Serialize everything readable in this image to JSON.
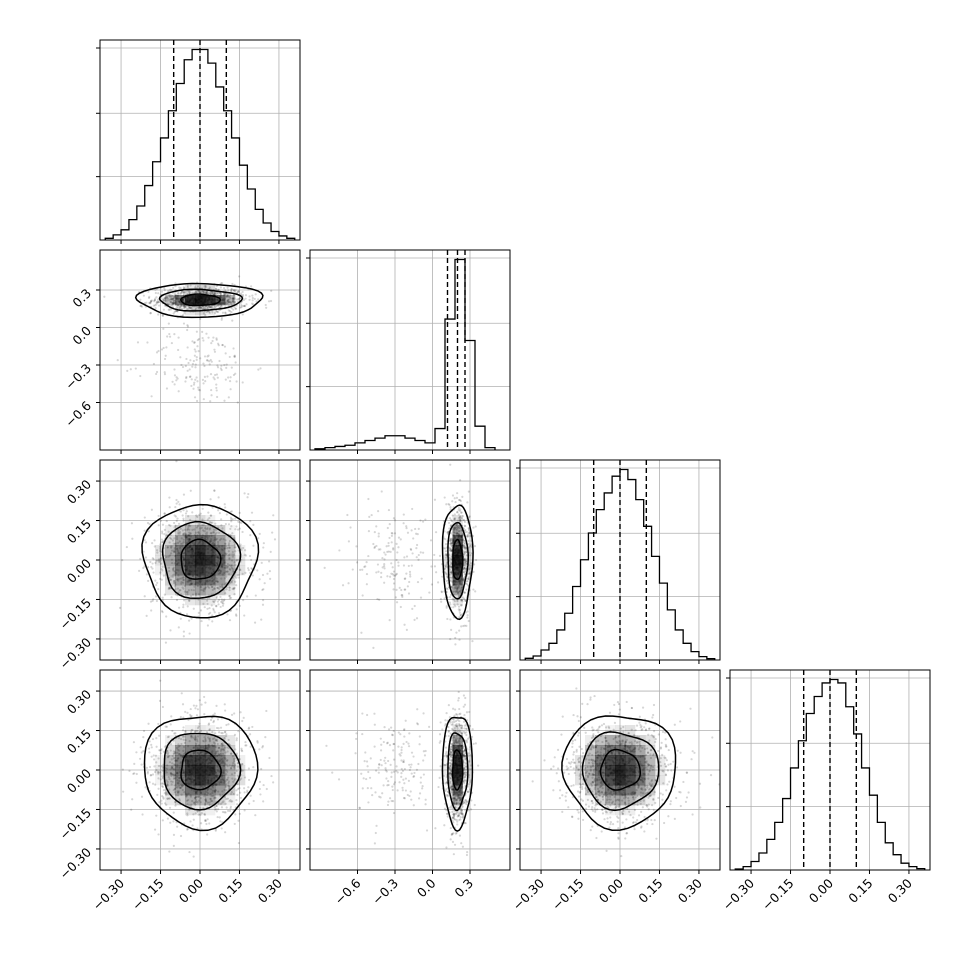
{
  "figure": {
    "type": "corner-plot",
    "n_parameters": 4,
    "colors": {
      "background": "#ffffff",
      "line": "#000000",
      "grid": "#b0b0b0",
      "scatter_points": "#000000",
      "density": "#000000"
    },
    "contour_levels": 3,
    "quantile_lines": "dashed"
  },
  "chart_data": [
    {
      "panel": "hist-param-1",
      "type": "histogram",
      "x_range": [
        -0.38,
        0.38
      ],
      "bin_edges": [
        -0.36,
        -0.33,
        -0.3,
        -0.27,
        -0.24,
        -0.21,
        -0.18,
        -0.15,
        -0.12,
        -0.09,
        -0.06,
        -0.03,
        0.0,
        0.03,
        0.06,
        0.09,
        0.12,
        0.15,
        0.18,
        0.21,
        0.24,
        0.27,
        0.3,
        0.33,
        0.36
      ],
      "counts": [
        0.5,
        1.5,
        3,
        6,
        10,
        16,
        23,
        30,
        38,
        46,
        53,
        56,
        56,
        52,
        45,
        38,
        30,
        22,
        15,
        9,
        5,
        2.5,
        1.2,
        0.5
      ],
      "quantiles": [
        -0.1,
        0.0,
        0.1
      ],
      "xticks": [
        "−0.30",
        "−0.15",
        "0.00",
        "0.15",
        "0.30"
      ],
      "grid": true
    },
    {
      "panel": "hist-param-2",
      "type": "histogram",
      "x_range": [
        -0.98,
        0.62
      ],
      "bin_edges": [
        -0.94,
        -0.86,
        -0.78,
        -0.7,
        -0.62,
        -0.54,
        -0.46,
        -0.38,
        -0.3,
        -0.22,
        -0.14,
        -0.06,
        0.02,
        0.1,
        0.18,
        0.26,
        0.34,
        0.42,
        0.5
      ],
      "counts": [
        0.5,
        1,
        1.5,
        2,
        3,
        4,
        5,
        6,
        6,
        5,
        4,
        3,
        9,
        55,
        80,
        46,
        10,
        1
      ],
      "quantiles": [
        0.12,
        0.2,
        0.26
      ],
      "xticks": [
        "−0.6",
        "−0.3",
        "0.0",
        "0.3"
      ],
      "grid": true
    },
    {
      "panel": "hist-param-3",
      "type": "histogram",
      "x_range": [
        -0.38,
        0.38
      ],
      "bin_edges": [
        -0.36,
        -0.33,
        -0.3,
        -0.27,
        -0.24,
        -0.21,
        -0.18,
        -0.15,
        -0.12,
        -0.09,
        -0.06,
        -0.03,
        0.0,
        0.03,
        0.06,
        0.09,
        0.12,
        0.15,
        0.18,
        0.21,
        0.24,
        0.27,
        0.3,
        0.33,
        0.36
      ],
      "counts": [
        0.5,
        1.2,
        3,
        5,
        9,
        14,
        22,
        30,
        38,
        45,
        50,
        55,
        57,
        54,
        48,
        40,
        31,
        23,
        15,
        9,
        5,
        2.5,
        1,
        0.4
      ],
      "quantiles": [
        -0.1,
        0.0,
        0.1
      ],
      "xticks": [
        "−0.30",
        "−0.15",
        "0.00",
        "0.15",
        "0.30"
      ],
      "grid": true
    },
    {
      "panel": "hist-param-4",
      "type": "histogram",
      "x_range": [
        -0.38,
        0.38
      ],
      "bin_edges": [
        -0.36,
        -0.33,
        -0.3,
        -0.27,
        -0.24,
        -0.21,
        -0.18,
        -0.15,
        -0.12,
        -0.09,
        -0.06,
        -0.03,
        0.0,
        0.03,
        0.06,
        0.09,
        0.12,
        0.15,
        0.18,
        0.21,
        0.24,
        0.27,
        0.3,
        0.33,
        0.36
      ],
      "counts": [
        0.3,
        1,
        2.5,
        5,
        9,
        14,
        21,
        30,
        38,
        46,
        51,
        55,
        56,
        55,
        48,
        40,
        30,
        22,
        14,
        8,
        4.5,
        2,
        1,
        0.4
      ],
      "quantiles": [
        -0.1,
        0.0,
        0.1
      ],
      "xticks": [
        "−0.30",
        "−0.15",
        "0.00",
        "0.15",
        "0.30"
      ],
      "grid": true
    },
    {
      "panel": "scatter-p2-vs-p1",
      "type": "scatter-density",
      "x_range": [
        -0.38,
        0.38
      ],
      "y_range": [
        -0.98,
        0.62
      ],
      "blobs": [
        {
          "cx": 0.0,
          "cy": 0.22,
          "sx": 0.09,
          "sy": 0.055,
          "weight": 0.85
        },
        {
          "cx": 0.0,
          "cy": -0.3,
          "sx": 0.1,
          "sy": 0.16,
          "weight": 0.15
        }
      ],
      "contours": [
        {
          "cx": 0.0,
          "cy": 0.22,
          "rx": 0.235,
          "ry": 0.135
        },
        {
          "cx": 0.0,
          "cy": 0.22,
          "rx": 0.155,
          "ry": 0.085
        },
        {
          "cx": 0.0,
          "cy": 0.22,
          "rx": 0.075,
          "ry": 0.045
        }
      ],
      "yticks": [
        "0.3",
        "0.0",
        "−0.3",
        "−0.6"
      ],
      "grid": true
    },
    {
      "panel": "scatter-p3-vs-p1",
      "type": "scatter-density",
      "x_range": [
        -0.38,
        0.38
      ],
      "y_range": [
        -0.38,
        0.38
      ],
      "blobs": [
        {
          "cx": 0.0,
          "cy": 0.0,
          "sx": 0.1,
          "sy": 0.1,
          "weight": 1.0
        }
      ],
      "contours": [
        {
          "cx": 0.0,
          "cy": 0.0,
          "rx": 0.215,
          "ry": 0.215
        },
        {
          "cx": 0.0,
          "cy": 0.0,
          "rx": 0.145,
          "ry": 0.145
        },
        {
          "cx": 0.0,
          "cy": 0.0,
          "rx": 0.075,
          "ry": 0.075
        }
      ],
      "yticks": [
        "0.30",
        "0.15",
        "0.00",
        "−0.15",
        "−0.30"
      ],
      "grid": true
    },
    {
      "panel": "scatter-p3-vs-p2",
      "type": "scatter-density",
      "x_range": [
        -0.98,
        0.62
      ],
      "y_range": [
        -0.38,
        0.38
      ],
      "blobs": [
        {
          "cx": 0.2,
          "cy": 0.0,
          "sx": 0.05,
          "sy": 0.1,
          "weight": 0.85
        },
        {
          "cx": -0.3,
          "cy": 0.0,
          "sx": 0.16,
          "sy": 0.1,
          "weight": 0.15
        }
      ],
      "contours": [
        {
          "cx": 0.2,
          "cy": 0.0,
          "rx": 0.12,
          "ry": 0.215
        },
        {
          "cx": 0.2,
          "cy": 0.0,
          "rx": 0.08,
          "ry": 0.145
        },
        {
          "cx": 0.2,
          "cy": 0.0,
          "rx": 0.04,
          "ry": 0.075
        }
      ],
      "grid": true
    },
    {
      "panel": "scatter-p4-vs-p1",
      "type": "scatter-density",
      "x_range": [
        -0.38,
        0.38
      ],
      "y_range": [
        -0.38,
        0.38
      ],
      "blobs": [
        {
          "cx": 0.0,
          "cy": 0.0,
          "sx": 0.1,
          "sy": 0.1,
          "weight": 1.0
        }
      ],
      "contours": [
        {
          "cx": 0.0,
          "cy": 0.0,
          "rx": 0.215,
          "ry": 0.215
        },
        {
          "cx": 0.0,
          "cy": 0.0,
          "rx": 0.145,
          "ry": 0.145
        },
        {
          "cx": 0.0,
          "cy": 0.0,
          "rx": 0.075,
          "ry": 0.075
        }
      ],
      "xticks": [
        "−0.30",
        "−0.15",
        "0.00",
        "0.15",
        "0.30"
      ],
      "yticks": [
        "0.30",
        "0.15",
        "0.00",
        "−0.15",
        "−0.30"
      ],
      "grid": true
    },
    {
      "panel": "scatter-p4-vs-p2",
      "type": "scatter-density",
      "x_range": [
        -0.98,
        0.62
      ],
      "y_range": [
        -0.38,
        0.38
      ],
      "blobs": [
        {
          "cx": 0.2,
          "cy": 0.0,
          "sx": 0.05,
          "sy": 0.1,
          "weight": 0.85
        },
        {
          "cx": -0.3,
          "cy": 0.0,
          "sx": 0.16,
          "sy": 0.1,
          "weight": 0.15
        }
      ],
      "contours": [
        {
          "cx": 0.2,
          "cy": 0.0,
          "rx": 0.12,
          "ry": 0.215
        },
        {
          "cx": 0.2,
          "cy": 0.0,
          "rx": 0.08,
          "ry": 0.145
        },
        {
          "cx": 0.2,
          "cy": 0.0,
          "rx": 0.04,
          "ry": 0.075
        }
      ],
      "xticks": [
        "−0.6",
        "−0.3",
        "0.0",
        "0.3"
      ],
      "grid": true
    },
    {
      "panel": "scatter-p4-vs-p3",
      "type": "scatter-density",
      "x_range": [
        -0.38,
        0.38
      ],
      "y_range": [
        -0.38,
        0.38
      ],
      "blobs": [
        {
          "cx": 0.0,
          "cy": 0.0,
          "sx": 0.1,
          "sy": 0.1,
          "weight": 1.0
        }
      ],
      "contours": [
        {
          "cx": 0.0,
          "cy": 0.0,
          "rx": 0.215,
          "ry": 0.215
        },
        {
          "cx": 0.0,
          "cy": 0.0,
          "rx": 0.145,
          "ry": 0.145
        },
        {
          "cx": 0.0,
          "cy": 0.0,
          "rx": 0.075,
          "ry": 0.075
        }
      ],
      "xticks": [
        "−0.30",
        "−0.15",
        "0.00",
        "0.15",
        "0.30"
      ],
      "grid": true
    }
  ]
}
